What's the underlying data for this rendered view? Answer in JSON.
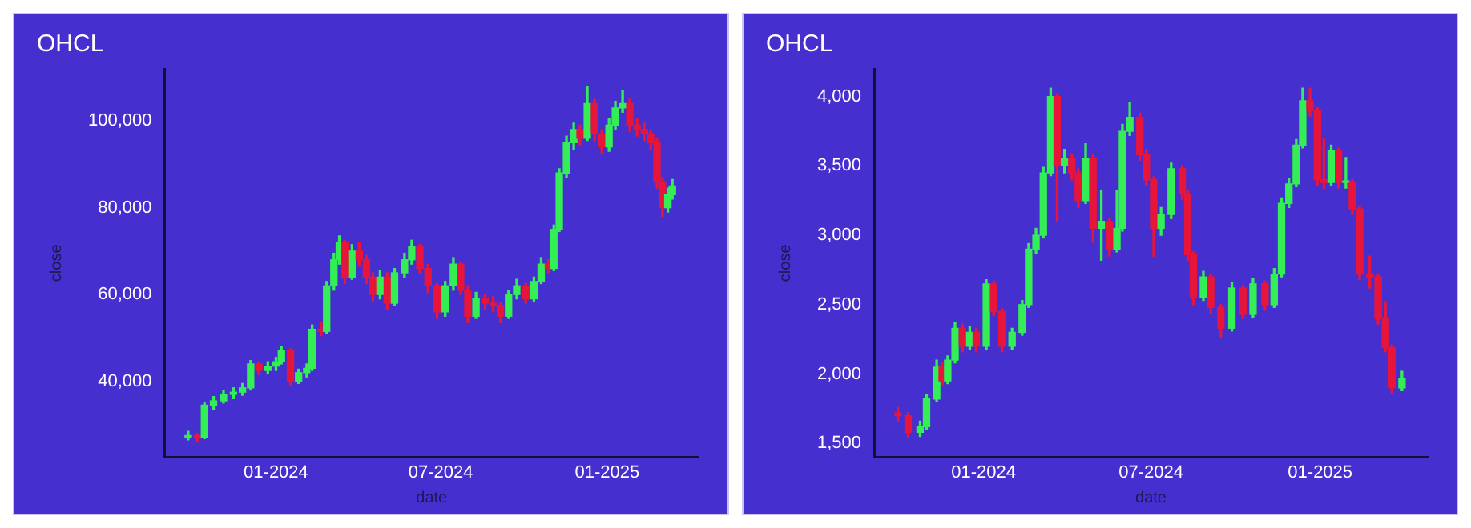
{
  "chart_data": [
    {
      "type": "candlestick",
      "title": "OHCL",
      "xlabel": "date",
      "ylabel": "close",
      "x": [
        "2023-09-26",
        "2023-10-06",
        "2023-10-14",
        "2023-10-24",
        "2023-11-04",
        "2023-11-15",
        "2023-11-25",
        "2023-12-04",
        "2023-12-13",
        "2023-12-23",
        "2024-01-01",
        "2024-01-07",
        "2024-01-17",
        "2024-01-26",
        "2024-02-04",
        "2024-02-10",
        "2024-02-20",
        "2024-02-26",
        "2024-03-05",
        "2024-03-11",
        "2024-03-17",
        "2024-03-25",
        "2024-04-02",
        "2024-04-10",
        "2024-04-17",
        "2024-04-25",
        "2024-05-03",
        "2024-05-11",
        "2024-05-22",
        "2024-05-30",
        "2024-06-08",
        "2024-06-17",
        "2024-06-27",
        "2024-07-06",
        "2024-07-15",
        "2024-07-23",
        "2024-07-31",
        "2024-08-09",
        "2024-08-19",
        "2024-08-28",
        "2024-09-05",
        "2024-09-14",
        "2024-09-23",
        "2024-10-03",
        "2024-10-12",
        "2024-10-20",
        "2024-10-28",
        "2024-11-03",
        "2024-11-09",
        "2024-11-17",
        "2024-11-25",
        "2024-12-02",
        "2024-12-10",
        "2024-12-18",
        "2024-12-26",
        "2025-01-03",
        "2025-01-10",
        "2025-01-18",
        "2025-01-26",
        "2025-02-03",
        "2025-02-11",
        "2025-02-18",
        "2025-02-25",
        "2025-03-03",
        "2025-03-09",
        "2025-03-14"
      ],
      "ohlc": [
        [
          27000,
          28500,
          26500,
          27500
        ],
        [
          27500,
          28000,
          26000,
          27000
        ],
        [
          27000,
          35000,
          26800,
          34500
        ],
        [
          34500,
          36500,
          33500,
          35500
        ],
        [
          35500,
          37800,
          35000,
          37000
        ],
        [
          37000,
          38500,
          36000,
          37500
        ],
        [
          37500,
          39500,
          36800,
          38500
        ],
        [
          38500,
          44800,
          38000,
          44000
        ],
        [
          44000,
          44500,
          41500,
          42500
        ],
        [
          42500,
          44500,
          41800,
          43500
        ],
        [
          43500,
          45500,
          42500,
          44500
        ],
        [
          44500,
          48000,
          44000,
          47000
        ],
        [
          47000,
          47500,
          39000,
          40000
        ],
        [
          40000,
          42800,
          39500,
          42000
        ],
        [
          42000,
          44000,
          41000,
          43000
        ],
        [
          43000,
          53000,
          42500,
          52000
        ],
        [
          52000,
          53500,
          50500,
          51500
        ],
        [
          51500,
          63000,
          51000,
          62000
        ],
        [
          62000,
          69500,
          61000,
          68000
        ],
        [
          68000,
          73500,
          67000,
          72000
        ],
        [
          72000,
          72500,
          62500,
          64000
        ],
        [
          64000,
          71500,
          63500,
          70000
        ],
        [
          70000,
          72000,
          66500,
          68000
        ],
        [
          68000,
          69000,
          62500,
          64000
        ],
        [
          64000,
          65000,
          58500,
          60000
        ],
        [
          60000,
          65500,
          59000,
          64000
        ],
        [
          64000,
          65000,
          56500,
          58000
        ],
        [
          58000,
          66000,
          57500,
          65000
        ],
        [
          65000,
          69500,
          64000,
          68000
        ],
        [
          68000,
          72500,
          67000,
          71000
        ],
        [
          71000,
          71500,
          65000,
          66000
        ],
        [
          66000,
          67000,
          60500,
          62000
        ],
        [
          62000,
          62500,
          54500,
          56000
        ],
        [
          56000,
          63000,
          55000,
          62000
        ],
        [
          62000,
          68500,
          61000,
          67000
        ],
        [
          67000,
          67500,
          60000,
          61000
        ],
        [
          61000,
          62000,
          53500,
          55000
        ],
        [
          55000,
          60500,
          54500,
          59000
        ],
        [
          59000,
          60000,
          56500,
          58000
        ],
        [
          58000,
          59500,
          56000,
          57500
        ],
        [
          57500,
          58000,
          53500,
          55000
        ],
        [
          55000,
          61000,
          54500,
          60000
        ],
        [
          60000,
          63500,
          59000,
          62000
        ],
        [
          62000,
          62500,
          58000,
          59000
        ],
        [
          59000,
          64000,
          58500,
          63000
        ],
        [
          63000,
          68500,
          62500,
          67000
        ],
        [
          67000,
          68000,
          65000,
          66000
        ],
        [
          66000,
          76000,
          65500,
          75000
        ],
        [
          75000,
          89000,
          74500,
          88000
        ],
        [
          88000,
          96500,
          87000,
          95000
        ],
        [
          95000,
          99500,
          93500,
          98000
        ],
        [
          98000,
          99000,
          94500,
          96000
        ],
        [
          96000,
          108000,
          95500,
          104000
        ],
        [
          104000,
          105000,
          95500,
          97000
        ],
        [
          97000,
          98000,
          92500,
          94000
        ],
        [
          94000,
          100500,
          93000,
          99000
        ],
        [
          99000,
          104500,
          98000,
          103000
        ],
        [
          103000,
          107000,
          102000,
          104000
        ],
        [
          104000,
          105000,
          97500,
          99000
        ],
        [
          99000,
          100500,
          96500,
          98000
        ],
        [
          98000,
          99500,
          95500,
          97000
        ],
        [
          97000,
          98000,
          93500,
          95000
        ],
        [
          95000,
          96000,
          84500,
          86000
        ],
        [
          86000,
          87000,
          78000,
          80000
        ],
        [
          80000,
          84500,
          79000,
          83000
        ],
        [
          83000,
          86500,
          82000,
          85000
        ]
      ],
      "xlim": [
        "2023-08-31",
        "2025-04-12"
      ],
      "xticks": [
        {
          "value": "2024-01-01",
          "label": "01-2024"
        },
        {
          "value": "2024-07-01",
          "label": "07-2024"
        },
        {
          "value": "2025-01-01",
          "label": "01-2025"
        }
      ],
      "ylim": [
        22500,
        112000
      ],
      "yticks": [
        {
          "value": 40000,
          "label": "40,000"
        },
        {
          "value": 60000,
          "label": "60,000"
        },
        {
          "value": 80000,
          "label": "80,000"
        },
        {
          "value": 100000,
          "label": "100,000"
        }
      ]
    },
    {
      "type": "candlestick",
      "title": "OHCL",
      "xlabel": "date",
      "ylabel": "close",
      "x": [
        "2023-09-30",
        "2023-10-11",
        "2023-10-24",
        "2023-10-31",
        "2023-11-11",
        "2023-11-17",
        "2023-11-23",
        "2023-12-01",
        "2023-12-09",
        "2023-12-17",
        "2023-12-24",
        "2024-01-04",
        "2024-01-12",
        "2024-01-21",
        "2024-02-01",
        "2024-02-12",
        "2024-02-19",
        "2024-02-27",
        "2024-03-06",
        "2024-03-14",
        "2024-03-21",
        "2024-03-29",
        "2024-04-06",
        "2024-04-13",
        "2024-04-21",
        "2024-04-29",
        "2024-05-08",
        "2024-05-17",
        "2024-05-25",
        "2024-05-31",
        "2024-06-08",
        "2024-06-19",
        "2024-06-26",
        "2024-07-04",
        "2024-07-12",
        "2024-07-23",
        "2024-08-04",
        "2024-08-10",
        "2024-08-16",
        "2024-08-27",
        "2024-09-04",
        "2024-09-15",
        "2024-09-27",
        "2024-10-09",
        "2024-10-20",
        "2024-11-02",
        "2024-11-12",
        "2024-11-20",
        "2024-11-28",
        "2024-12-06",
        "2024-12-13",
        "2024-12-21",
        "2024-12-29",
        "2025-01-05",
        "2025-01-13",
        "2025-01-21",
        "2025-01-29",
        "2025-02-05",
        "2025-02-13",
        "2025-02-24",
        "2025-03-05",
        "2025-03-13",
        "2025-03-20",
        "2025-03-31"
      ],
      "ohlc": [
        [
          1720,
          1760,
          1660,
          1700
        ],
        [
          1700,
          1720,
          1540,
          1580
        ],
        [
          1580,
          1660,
          1550,
          1620
        ],
        [
          1620,
          1850,
          1600,
          1820
        ],
        [
          1820,
          2100,
          1800,
          2050
        ],
        [
          2050,
          2080,
          1920,
          1950
        ],
        [
          1950,
          2130,
          1930,
          2100
        ],
        [
          2100,
          2370,
          2080,
          2330
        ],
        [
          2330,
          2360,
          2160,
          2200
        ],
        [
          2200,
          2340,
          2180,
          2300
        ],
        [
          2300,
          2330,
          2160,
          2200
        ],
        [
          2200,
          2680,
          2180,
          2650
        ],
        [
          2650,
          2670,
          2420,
          2450
        ],
        [
          2450,
          2470,
          2160,
          2200
        ],
        [
          2200,
          2330,
          2180,
          2300
        ],
        [
          2300,
          2530,
          2280,
          2500
        ],
        [
          2500,
          2940,
          2480,
          2900
        ],
        [
          2900,
          3050,
          2870,
          3000
        ],
        [
          3000,
          3490,
          2980,
          3450
        ],
        [
          3450,
          4060,
          3430,
          4000
        ],
        [
          4000,
          4020,
          3100,
          3500
        ],
        [
          3500,
          3620,
          3450,
          3550
        ],
        [
          3550,
          3580,
          3400,
          3450
        ],
        [
          3450,
          3480,
          3200,
          3250
        ],
        [
          3250,
          3660,
          3230,
          3550
        ],
        [
          3550,
          3580,
          2950,
          3050
        ],
        [
          3050,
          3320,
          2820,
          3100
        ],
        [
          3100,
          3120,
          2850,
          2900
        ],
        [
          2900,
          3320,
          2880,
          3050
        ],
        [
          3050,
          3800,
          3030,
          3750
        ],
        [
          3750,
          3960,
          3720,
          3850
        ],
        [
          3850,
          3880,
          3540,
          3580
        ],
        [
          3580,
          3620,
          3360,
          3400
        ],
        [
          3400,
          3420,
          2850,
          3050
        ],
        [
          3050,
          3200,
          3000,
          3150
        ],
        [
          3150,
          3520,
          3120,
          3480
        ],
        [
          3480,
          3500,
          3260,
          3300
        ],
        [
          3300,
          3320,
          2820,
          2860
        ],
        [
          2860,
          2880,
          2500,
          2550
        ],
        [
          2550,
          2740,
          2530,
          2700
        ],
        [
          2700,
          2720,
          2440,
          2480
        ],
        [
          2480,
          2500,
          2260,
          2330
        ],
        [
          2330,
          2660,
          2310,
          2620
        ],
        [
          2620,
          2640,
          2400,
          2430
        ],
        [
          2430,
          2690,
          2410,
          2650
        ],
        [
          2650,
          2670,
          2460,
          2500
        ],
        [
          2500,
          2760,
          2480,
          2720
        ],
        [
          2720,
          3270,
          2700,
          3230
        ],
        [
          3230,
          3410,
          3200,
          3370
        ],
        [
          3370,
          3690,
          3350,
          3650
        ],
        [
          3650,
          4060,
          3630,
          3970
        ],
        [
          3970,
          4060,
          3860,
          3900
        ],
        [
          3900,
          3920,
          3360,
          3400
        ],
        [
          3400,
          3700,
          3340,
          3380
        ],
        [
          3380,
          3650,
          3360,
          3610
        ],
        [
          3610,
          3630,
          3340,
          3380
        ],
        [
          3380,
          3560,
          3340,
          3380
        ],
        [
          3380,
          3400,
          3150,
          3190
        ],
        [
          3190,
          3210,
          2680,
          2720
        ],
        [
          2720,
          2850,
          2620,
          2700
        ],
        [
          2700,
          2720,
          2360,
          2400
        ],
        [
          2400,
          2520,
          2160,
          2190
        ],
        [
          2190,
          2210,
          1860,
          1900
        ],
        [
          1900,
          2020,
          1880,
          1970
        ]
      ],
      "xlim": [
        "2023-09-04",
        "2025-04-28"
      ],
      "xticks": [
        {
          "value": "2024-01-01",
          "label": "01-2024"
        },
        {
          "value": "2024-07-01",
          "label": "07-2024"
        },
        {
          "value": "2025-01-01",
          "label": "01-2025"
        }
      ],
      "ylim": [
        1400,
        4200
      ],
      "yticks": [
        {
          "value": 1500,
          "label": "1,500"
        },
        {
          "value": 2000,
          "label": "2,000"
        },
        {
          "value": 2500,
          "label": "2,500"
        },
        {
          "value": 3000,
          "label": "3,000"
        },
        {
          "value": 3500,
          "label": "3,500"
        },
        {
          "value": 4000,
          "label": "4,000"
        }
      ]
    }
  ]
}
